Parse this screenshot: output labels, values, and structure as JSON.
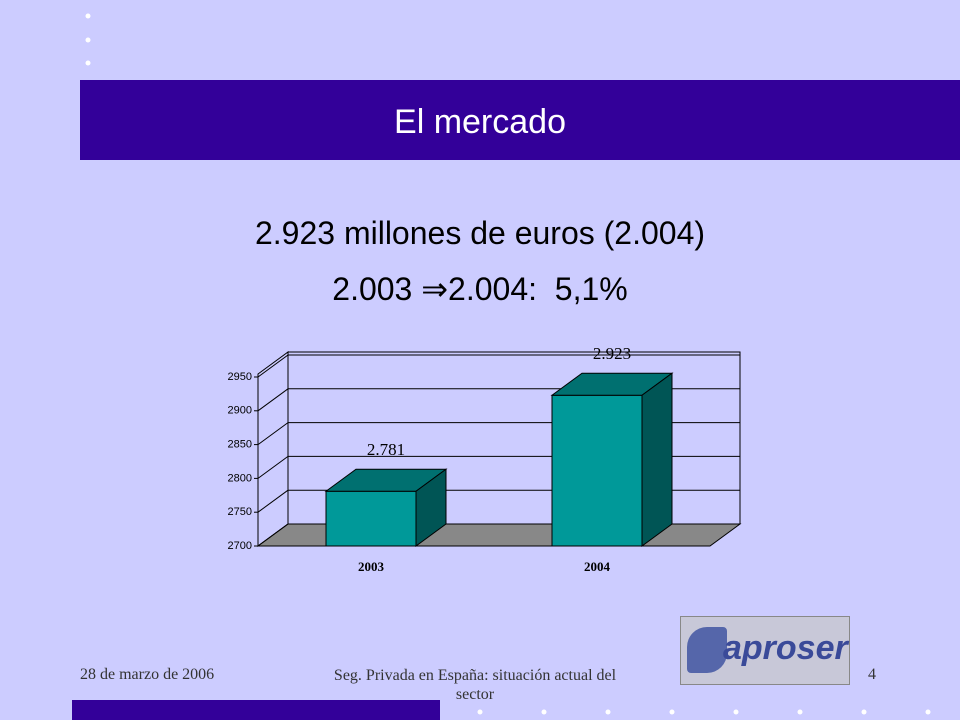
{
  "header": {
    "title": "El mercado"
  },
  "body": {
    "lines": [
      "2.923 millones de euros (2.004)",
      "2.003 ⇒2.004:  5,1%"
    ]
  },
  "chart_data": {
    "type": "bar3d",
    "categories": [
      "2003",
      "2004"
    ],
    "values": [
      2781,
      2923
    ],
    "value_labels": [
      "2.781",
      "2.923"
    ],
    "color": "#009999",
    "ylim": [
      2700,
      2950
    ],
    "yticks": [
      2700,
      2750,
      2800,
      2850,
      2900,
      2950
    ],
    "grid": true
  },
  "footer": {
    "date": "28 de marzo de 2006",
    "subject": "Seg. Privada en España: situación actual del sector",
    "page": "4",
    "logo": "aproser"
  }
}
